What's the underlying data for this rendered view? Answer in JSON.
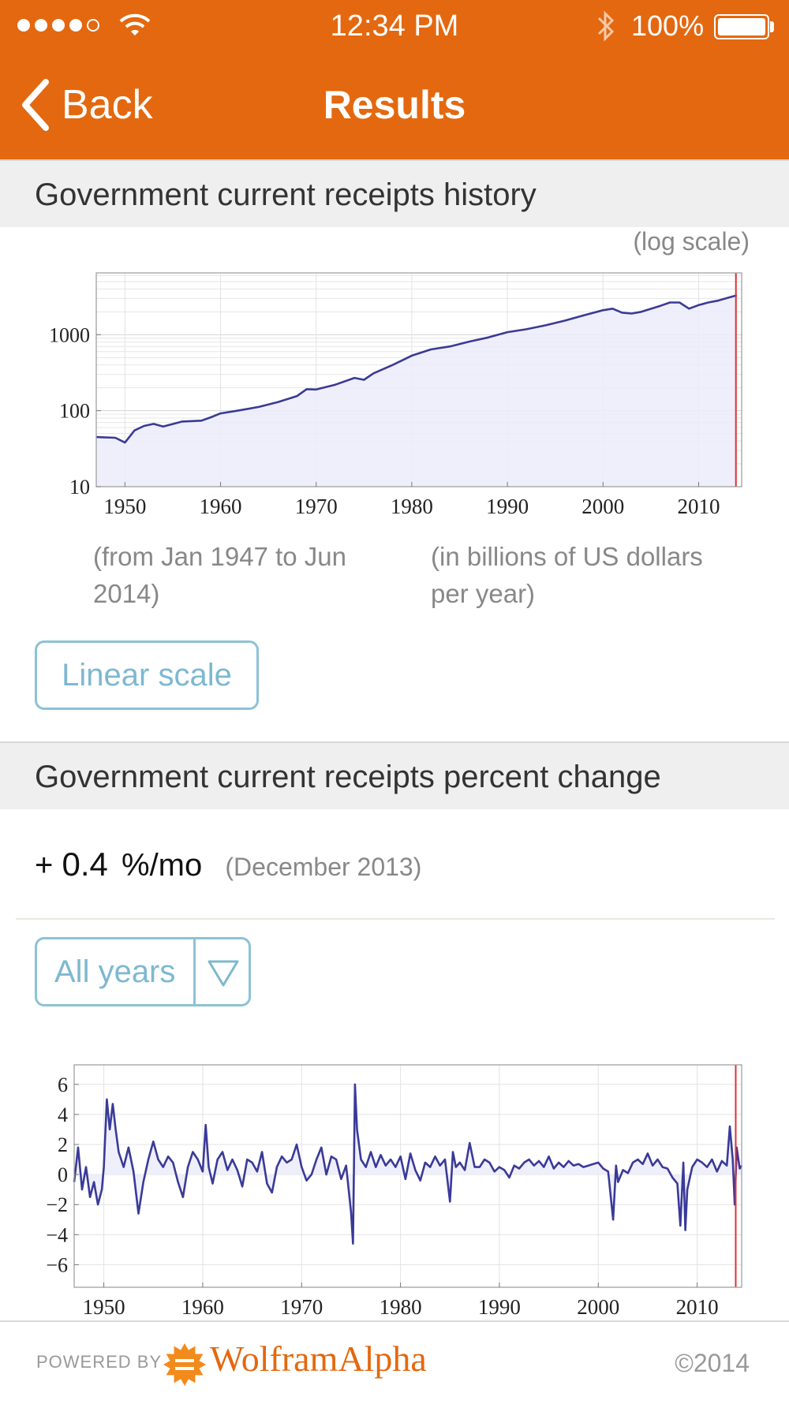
{
  "status_bar": {
    "time": "12:34 PM",
    "battery": "100%"
  },
  "nav": {
    "back_label": "Back",
    "title": "Results"
  },
  "pod1": {
    "title": "Government current receipts history",
    "scale_note": "(log scale)",
    "caption_left": [
      "(from Jan 1947 to Jun",
      "2014)"
    ],
    "caption_right": [
      "(in billions of US dollars",
      "per year)"
    ],
    "button_label": "Linear scale"
  },
  "pod2": {
    "title": "Government current receipts percent change",
    "sign": "+",
    "value": "0.4",
    "unit": "%/mo",
    "date_note": "(December 2013)",
    "select_label": "All years"
  },
  "footer": {
    "powered_by": "POWERED BY",
    "brand": "WolframAlpha",
    "copyright": "©2014"
  },
  "colors": {
    "brand_orange": "#e4680f",
    "series": "#3a3a98",
    "marker": "#e03030",
    "button": "#8cc2d6"
  },
  "chart_data": [
    {
      "type": "area",
      "yscale": "log",
      "xlim": [
        1947,
        2014.5
      ],
      "ylim": [
        10,
        6500
      ],
      "xticks": [
        1950,
        1960,
        1970,
        1980,
        1990,
        2000,
        2010
      ],
      "yticks": [
        10,
        100,
        1000
      ],
      "marker_x": 2013.9,
      "series": [
        {
          "values": [
            [
              1947,
              45
            ],
            [
              1949,
              44
            ],
            [
              1950,
              38
            ],
            [
              1951,
              55
            ],
            [
              1952,
              63
            ],
            [
              1953,
              67
            ],
            [
              1954,
              62
            ],
            [
              1956,
              72
            ],
            [
              1958,
              74
            ],
            [
              1959,
              82
            ],
            [
              1960,
              92
            ],
            [
              1962,
              101
            ],
            [
              1964,
              112
            ],
            [
              1966,
              130
            ],
            [
              1968,
              156
            ],
            [
              1969,
              192
            ],
            [
              1970,
              190
            ],
            [
              1972,
              220
            ],
            [
              1974,
              270
            ],
            [
              1975,
              255
            ],
            [
              1976,
              310
            ],
            [
              1978,
              400
            ],
            [
              1980,
              530
            ],
            [
              1982,
              640
            ],
            [
              1984,
              700
            ],
            [
              1986,
              810
            ],
            [
              1988,
              920
            ],
            [
              1990,
              1080
            ],
            [
              1992,
              1180
            ],
            [
              1994,
              1330
            ],
            [
              1996,
              1530
            ],
            [
              1998,
              1800
            ],
            [
              2000,
              2100
            ],
            [
              2001,
              2200
            ],
            [
              2002,
              1950
            ],
            [
              2003,
              1900
            ],
            [
              2004,
              2000
            ],
            [
              2006,
              2400
            ],
            [
              2007,
              2650
            ],
            [
              2008,
              2650
            ],
            [
              2009,
              2200
            ],
            [
              2010,
              2450
            ],
            [
              2011,
              2650
            ],
            [
              2012,
              2800
            ],
            [
              2013,
              3050
            ],
            [
              2014,
              3300
            ]
          ]
        }
      ]
    },
    {
      "type": "line",
      "xlim": [
        1947,
        2014.5
      ],
      "ylim": [
        -7.5,
        7.3
      ],
      "xticks": [
        1950,
        1960,
        1970,
        1980,
        1990,
        2000,
        2010
      ],
      "yticks": [
        6,
        4,
        2,
        0,
        -2,
        -4,
        -6
      ],
      "marker_x": 2013.9,
      "series": [
        {
          "values": [
            [
              1947,
              -0.5
            ],
            [
              1947.4,
              1.8
            ],
            [
              1947.8,
              -1
            ],
            [
              1948.2,
              0.5
            ],
            [
              1948.6,
              -1.5
            ],
            [
              1949,
              -0.5
            ],
            [
              1949.4,
              -2
            ],
            [
              1949.8,
              -1
            ],
            [
              1950,
              0.5
            ],
            [
              1950.3,
              5
            ],
            [
              1950.6,
              3
            ],
            [
              1950.9,
              4.7
            ],
            [
              1951.2,
              3
            ],
            [
              1951.5,
              1.5
            ],
            [
              1952,
              0.5
            ],
            [
              1952.5,
              1.8
            ],
            [
              1953,
              0.2
            ],
            [
              1953.5,
              -2.6
            ],
            [
              1954,
              -0.5
            ],
            [
              1954.5,
              1
            ],
            [
              1955,
              2.2
            ],
            [
              1955.5,
              1
            ],
            [
              1956,
              0.5
            ],
            [
              1956.5,
              1.2
            ],
            [
              1957,
              0.8
            ],
            [
              1957.5,
              -0.5
            ],
            [
              1958,
              -1.5
            ],
            [
              1958.5,
              0.5
            ],
            [
              1959,
              1.5
            ],
            [
              1959.5,
              1
            ],
            [
              1960,
              0.2
            ],
            [
              1960.3,
              3.3
            ],
            [
              1960.6,
              0.5
            ],
            [
              1961,
              -0.6
            ],
            [
              1961.5,
              1
            ],
            [
              1962,
              1.5
            ],
            [
              1962.5,
              0.3
            ],
            [
              1963,
              1
            ],
            [
              1963.5,
              0.3
            ],
            [
              1964,
              -0.8
            ],
            [
              1964.5,
              1
            ],
            [
              1965,
              0.8
            ],
            [
              1965.5,
              0.2
            ],
            [
              1966,
              1.5
            ],
            [
              1966.5,
              -0.6
            ],
            [
              1967,
              -1.2
            ],
            [
              1967.5,
              0.5
            ],
            [
              1968,
              1.2
            ],
            [
              1968.5,
              0.8
            ],
            [
              1969,
              1
            ],
            [
              1969.5,
              2
            ],
            [
              1970,
              0.5
            ],
            [
              1970.5,
              -0.4
            ],
            [
              1971,
              0
            ],
            [
              1971.5,
              1
            ],
            [
              1972,
              1.8
            ],
            [
              1972.5,
              0
            ],
            [
              1973,
              1.2
            ],
            [
              1973.5,
              1
            ],
            [
              1974,
              -0.3
            ],
            [
              1974.5,
              0.6
            ],
            [
              1975,
              -2.5
            ],
            [
              1975.2,
              -4.6
            ],
            [
              1975.4,
              6
            ],
            [
              1975.6,
              3
            ],
            [
              1976,
              1
            ],
            [
              1976.5,
              0.5
            ],
            [
              1977,
              1.5
            ],
            [
              1977.5,
              0.5
            ],
            [
              1978,
              1.3
            ],
            [
              1978.5,
              0.6
            ],
            [
              1979,
              1
            ],
            [
              1979.5,
              0.5
            ],
            [
              1980,
              1.2
            ],
            [
              1980.5,
              -0.3
            ],
            [
              1981,
              1.4
            ],
            [
              1981.5,
              0.3
            ],
            [
              1982,
              -0.4
            ],
            [
              1982.5,
              0.8
            ],
            [
              1983,
              0.5
            ],
            [
              1983.5,
              1.2
            ],
            [
              1984,
              0.6
            ],
            [
              1984.5,
              1
            ],
            [
              1985,
              -1.8
            ],
            [
              1985.3,
              1.5
            ],
            [
              1985.6,
              0.5
            ],
            [
              1986,
              0.8
            ],
            [
              1986.5,
              0.3
            ],
            [
              1987,
              2.1
            ],
            [
              1987.5,
              0.5
            ],
            [
              1988,
              0.5
            ],
            [
              1988.5,
              1
            ],
            [
              1989,
              0.8
            ],
            [
              1989.5,
              0.2
            ],
            [
              1990,
              0.5
            ],
            [
              1990.5,
              0.3
            ],
            [
              1991,
              -0.2
            ],
            [
              1991.5,
              0.6
            ],
            [
              1992,
              0.4
            ],
            [
              1992.5,
              0.8
            ],
            [
              1993,
              1
            ],
            [
              1993.5,
              0.6
            ],
            [
              1994,
              0.9
            ],
            [
              1994.5,
              0.5
            ],
            [
              1995,
              1.2
            ],
            [
              1995.5,
              0.4
            ],
            [
              1996,
              0.8
            ],
            [
              1996.5,
              0.5
            ],
            [
              1997,
              0.9
            ],
            [
              1997.5,
              0.6
            ],
            [
              1998,
              0.7
            ],
            [
              1998.5,
              0.5
            ],
            [
              1999,
              0.6
            ],
            [
              1999.5,
              0.7
            ],
            [
              2000,
              0.8
            ],
            [
              2000.5,
              0.4
            ],
            [
              2001,
              0.2
            ],
            [
              2001.5,
              -3
            ],
            [
              2001.8,
              0.6
            ],
            [
              2002,
              -0.5
            ],
            [
              2002.5,
              0.3
            ],
            [
              2003,
              0.1
            ],
            [
              2003.5,
              0.8
            ],
            [
              2004,
              1
            ],
            [
              2004.5,
              0.7
            ],
            [
              2005,
              1.4
            ],
            [
              2005.5,
              0.6
            ],
            [
              2006,
              1
            ],
            [
              2006.5,
              0.5
            ],
            [
              2007,
              0.4
            ],
            [
              2007.5,
              -0.2
            ],
            [
              2008,
              -0.6
            ],
            [
              2008.3,
              -3.4
            ],
            [
              2008.6,
              0.8
            ],
            [
              2008.8,
              -3.7
            ],
            [
              2009,
              -1
            ],
            [
              2009.5,
              0.5
            ],
            [
              2010,
              1
            ],
            [
              2010.5,
              0.8
            ],
            [
              2011,
              0.5
            ],
            [
              2011.5,
              1
            ],
            [
              2012,
              0.2
            ],
            [
              2012.5,
              0.9
            ],
            [
              2013,
              0.6
            ],
            [
              2013.3,
              3.2
            ],
            [
              2013.6,
              1
            ],
            [
              2013.8,
              -2
            ],
            [
              2014,
              1.8
            ],
            [
              2014.3,
              0.4
            ],
            [
              2014.5,
              0.6
            ]
          ]
        }
      ]
    }
  ]
}
